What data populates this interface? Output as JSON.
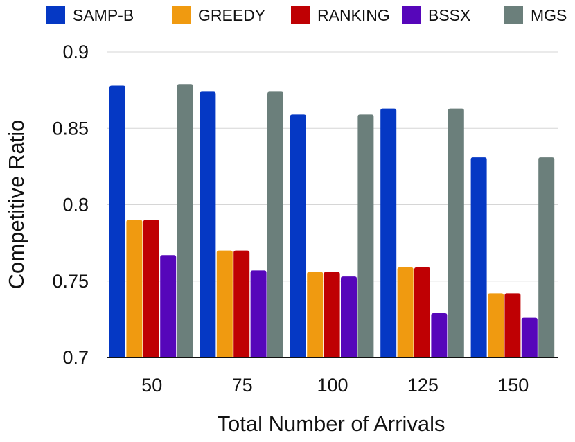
{
  "chart_data": {
    "type": "bar",
    "title": "",
    "xlabel": "Total Number of Arrivals",
    "ylabel": "Competitive Ratio",
    "categories": [
      "50",
      "75",
      "100",
      "125",
      "150"
    ],
    "ylim": [
      0.7,
      0.9
    ],
    "yticks": [
      0.7,
      0.75,
      0.8,
      0.85,
      0.9
    ],
    "ytick_labels": [
      "0.7",
      "0.75",
      "0.8",
      "0.85",
      "0.9"
    ],
    "grid": true,
    "legend_position": "top",
    "series": [
      {
        "name": "SAMP-B",
        "color": "#0538c4",
        "values": [
          0.878,
          0.874,
          0.859,
          0.863,
          0.831
        ]
      },
      {
        "name": "GREEDY",
        "color": "#f09a10",
        "values": [
          0.79,
          0.77,
          0.756,
          0.759,
          0.742
        ]
      },
      {
        "name": "RANKING",
        "color": "#bf0003",
        "values": [
          0.79,
          0.77,
          0.756,
          0.759,
          0.742
        ]
      },
      {
        "name": "BSSX",
        "color": "#5606ba",
        "values": [
          0.767,
          0.757,
          0.753,
          0.729,
          0.726
        ]
      },
      {
        "name": "MGS",
        "color": "#6b7f7b",
        "values": [
          0.879,
          0.874,
          0.859,
          0.863,
          0.831
        ]
      }
    ]
  }
}
